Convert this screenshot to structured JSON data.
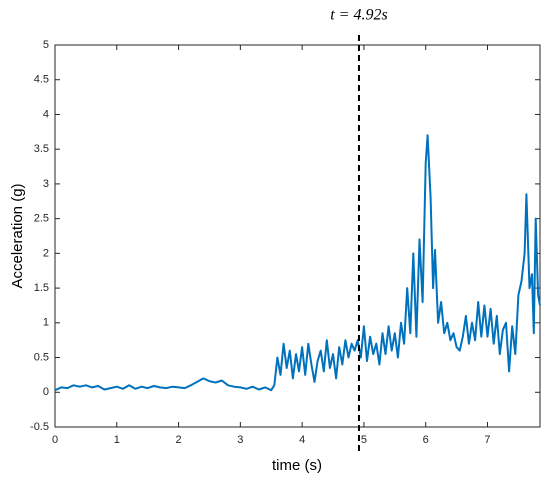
{
  "chart_data": {
    "type": "line",
    "xlabel": "time (s)",
    "ylabel": "Acceleration (g)",
    "annotation": {
      "text": "t = 4.92s",
      "x": 4.92
    },
    "xlim": [
      0,
      7.85
    ],
    "ylim": [
      -0.5,
      5
    ],
    "xticks": [
      0,
      1,
      2,
      3,
      4,
      5,
      6,
      7
    ],
    "yticks": [
      -0.5,
      0,
      0.5,
      1,
      1.5,
      2,
      2.5,
      3,
      3.5,
      4,
      4.5,
      5
    ],
    "series": [
      {
        "color": "#0072bd",
        "x": [
          0,
          0.1,
          0.2,
          0.3,
          0.4,
          0.5,
          0.6,
          0.7,
          0.8,
          0.9,
          1.0,
          1.1,
          1.2,
          1.3,
          1.4,
          1.5,
          1.6,
          1.7,
          1.8,
          1.9,
          2.0,
          2.1,
          2.2,
          2.3,
          2.4,
          2.5,
          2.6,
          2.7,
          2.8,
          2.9,
          3.0,
          3.1,
          3.2,
          3.3,
          3.4,
          3.5,
          3.55,
          3.6,
          3.65,
          3.7,
          3.75,
          3.8,
          3.85,
          3.9,
          3.95,
          4.0,
          4.05,
          4.1,
          4.15,
          4.2,
          4.25,
          4.3,
          4.35,
          4.4,
          4.45,
          4.5,
          4.55,
          4.6,
          4.65,
          4.7,
          4.75,
          4.8,
          4.85,
          4.9,
          4.95,
          5.0,
          5.05,
          5.1,
          5.15,
          5.2,
          5.25,
          5.3,
          5.35,
          5.4,
          5.45,
          5.5,
          5.55,
          5.6,
          5.65,
          5.7,
          5.75,
          5.8,
          5.85,
          5.9,
          5.95,
          6.0,
          6.03,
          6.08,
          6.12,
          6.15,
          6.2,
          6.25,
          6.3,
          6.35,
          6.4,
          6.45,
          6.5,
          6.55,
          6.6,
          6.65,
          6.7,
          6.75,
          6.8,
          6.85,
          6.9,
          6.95,
          7.0,
          7.05,
          7.1,
          7.15,
          7.2,
          7.25,
          7.3,
          7.35,
          7.4,
          7.45,
          7.5,
          7.55,
          7.6,
          7.63,
          7.68,
          7.72,
          7.75,
          7.78,
          7.82,
          7.85
        ],
        "values": [
          0.03,
          0.07,
          0.06,
          0.1,
          0.08,
          0.1,
          0.07,
          0.09,
          0.04,
          0.06,
          0.08,
          0.05,
          0.1,
          0.05,
          0.08,
          0.06,
          0.09,
          0.07,
          0.06,
          0.08,
          0.07,
          0.06,
          0.1,
          0.15,
          0.2,
          0.16,
          0.14,
          0.17,
          0.1,
          0.08,
          0.07,
          0.05,
          0.08,
          0.04,
          0.07,
          0.03,
          0.1,
          0.5,
          0.25,
          0.7,
          0.35,
          0.6,
          0.2,
          0.55,
          0.3,
          0.65,
          0.25,
          0.7,
          0.4,
          0.15,
          0.45,
          0.6,
          0.3,
          0.75,
          0.35,
          0.55,
          0.2,
          0.65,
          0.4,
          0.75,
          0.5,
          0.7,
          0.6,
          0.75,
          0.5,
          0.95,
          0.45,
          0.8,
          0.55,
          0.7,
          0.4,
          0.85,
          0.55,
          0.95,
          0.6,
          0.85,
          0.5,
          1.0,
          0.7,
          1.5,
          0.85,
          2.0,
          0.8,
          2.2,
          1.3,
          3.3,
          3.7,
          2.8,
          1.5,
          2.05,
          1.0,
          1.3,
          0.85,
          1.0,
          0.75,
          0.85,
          0.65,
          0.6,
          0.8,
          1.1,
          0.7,
          1.0,
          0.75,
          1.3,
          0.8,
          1.25,
          0.8,
          1.2,
          0.7,
          1.1,
          0.55,
          0.9,
          1.0,
          0.3,
          0.95,
          0.55,
          1.4,
          1.6,
          2.0,
          2.85,
          1.5,
          1.7,
          0.85,
          2.5,
          1.4,
          1.25
        ]
      }
    ]
  }
}
